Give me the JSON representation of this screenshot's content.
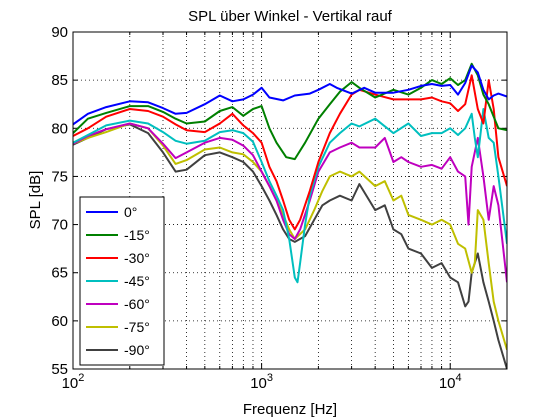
{
  "chart_data": {
    "type": "line",
    "title": "SPL über Winkel - Vertikal rauf",
    "xlabel": "Frequenz [Hz]",
    "ylabel": "SPL [dB]",
    "x_scale": "log",
    "xlim": [
      100,
      20000
    ],
    "ylim": [
      55,
      90
    ],
    "grid": true,
    "legend_position": "bottom-left",
    "x_ticks": [
      {
        "value": 100,
        "base": "10",
        "exp": "2"
      },
      {
        "value": 1000,
        "base": "10",
        "exp": "3"
      },
      {
        "value": 10000,
        "base": "10",
        "exp": "4"
      }
    ],
    "y_ticks": [
      "55",
      "60",
      "65",
      "70",
      "75",
      "80",
      "85",
      "90"
    ],
    "series": [
      {
        "name": "0°",
        "color": "#0000ff",
        "points": [
          [
            100,
            80.4
          ],
          [
            120,
            81.5
          ],
          [
            150,
            82.2
          ],
          [
            200,
            82.8
          ],
          [
            250,
            82.7
          ],
          [
            300,
            82.1
          ],
          [
            350,
            81.5
          ],
          [
            400,
            81.6
          ],
          [
            500,
            82.5
          ],
          [
            600,
            83.4
          ],
          [
            700,
            82.8
          ],
          [
            800,
            83.0
          ],
          [
            900,
            83.5
          ],
          [
            1000,
            84.2
          ],
          [
            1100,
            83.2
          ],
          [
            1300,
            82.9
          ],
          [
            1500,
            83.4
          ],
          [
            1800,
            83.6
          ],
          [
            2000,
            84.0
          ],
          [
            2300,
            84.6
          ],
          [
            2500,
            84.2
          ],
          [
            3000,
            83.6
          ],
          [
            3500,
            84.2
          ],
          [
            4000,
            83.7
          ],
          [
            5000,
            83.7
          ],
          [
            6000,
            84.0
          ],
          [
            7000,
            84.4
          ],
          [
            8000,
            84.6
          ],
          [
            9000,
            84.4
          ],
          [
            10000,
            84.5
          ],
          [
            11000,
            83.5
          ],
          [
            12000,
            84.7
          ],
          [
            13000,
            86.5
          ],
          [
            14000,
            85.8
          ],
          [
            15000,
            84.0
          ],
          [
            16000,
            83.0
          ],
          [
            17000,
            83.4
          ],
          [
            18000,
            83.6
          ],
          [
            20000,
            83.3
          ]
        ]
      },
      {
        "name": "-15°",
        "color": "#008000",
        "points": [
          [
            100,
            79.5
          ],
          [
            120,
            81.0
          ],
          [
            150,
            81.6
          ],
          [
            200,
            82.3
          ],
          [
            250,
            82.3
          ],
          [
            300,
            81.7
          ],
          [
            350,
            81.0
          ],
          [
            400,
            80.5
          ],
          [
            500,
            80.7
          ],
          [
            600,
            81.8
          ],
          [
            700,
            82.2
          ],
          [
            800,
            81.3
          ],
          [
            900,
            82.0
          ],
          [
            1000,
            82.3
          ],
          [
            1100,
            80.0
          ],
          [
            1200,
            78.5
          ],
          [
            1350,
            77.0
          ],
          [
            1500,
            76.8
          ],
          [
            1700,
            78.5
          ],
          [
            2000,
            81.0
          ],
          [
            2300,
            82.5
          ],
          [
            2600,
            83.8
          ],
          [
            3000,
            84.8
          ],
          [
            3300,
            84.2
          ],
          [
            4000,
            83.2
          ],
          [
            5000,
            84.0
          ],
          [
            6000,
            83.5
          ],
          [
            7000,
            84.2
          ],
          [
            8000,
            85.0
          ],
          [
            9000,
            84.6
          ],
          [
            10000,
            85.2
          ],
          [
            11000,
            84.5
          ],
          [
            12000,
            85.0
          ],
          [
            13000,
            86.7
          ],
          [
            14000,
            85.5
          ],
          [
            15000,
            83.5
          ],
          [
            16000,
            82.5
          ],
          [
            17000,
            81.2
          ],
          [
            18000,
            80.0
          ],
          [
            20000,
            79.8
          ]
        ]
      },
      {
        "name": "-30°",
        "color": "#ff0000",
        "points": [
          [
            100,
            79.2
          ],
          [
            120,
            80.0
          ],
          [
            150,
            81.2
          ],
          [
            200,
            82.0
          ],
          [
            250,
            81.8
          ],
          [
            300,
            81.2
          ],
          [
            350,
            80.4
          ],
          [
            400,
            79.8
          ],
          [
            500,
            79.6
          ],
          [
            600,
            80.5
          ],
          [
            700,
            81.5
          ],
          [
            800,
            80.3
          ],
          [
            900,
            79.5
          ],
          [
            1000,
            78.5
          ],
          [
            1100,
            76.0
          ],
          [
            1200,
            74.5
          ],
          [
            1300,
            72.5
          ],
          [
            1400,
            70.5
          ],
          [
            1500,
            69.5
          ],
          [
            1600,
            70.5
          ],
          [
            1800,
            73.5
          ],
          [
            2000,
            76.5
          ],
          [
            2300,
            79.5
          ],
          [
            2600,
            81.5
          ],
          [
            3000,
            83.5
          ],
          [
            3300,
            84.0
          ],
          [
            4000,
            83.5
          ],
          [
            5000,
            83.0
          ],
          [
            6000,
            83.0
          ],
          [
            7000,
            83.0
          ],
          [
            8000,
            83.2
          ],
          [
            9000,
            82.8
          ],
          [
            10000,
            82.6
          ],
          [
            11000,
            81.8
          ],
          [
            12000,
            82.5
          ],
          [
            13000,
            85.5
          ],
          [
            14000,
            82.0
          ],
          [
            15000,
            80.5
          ],
          [
            16000,
            85.0
          ],
          [
            17000,
            82.0
          ],
          [
            18000,
            77.0
          ],
          [
            20000,
            74.0
          ]
        ]
      },
      {
        "name": "-45°",
        "color": "#00bfbf",
        "points": [
          [
            100,
            78.5
          ],
          [
            120,
            79.3
          ],
          [
            150,
            80.3
          ],
          [
            200,
            80.8
          ],
          [
            250,
            80.5
          ],
          [
            300,
            79.6
          ],
          [
            350,
            78.7
          ],
          [
            400,
            78.4
          ],
          [
            500,
            78.7
          ],
          [
            600,
            79.6
          ],
          [
            700,
            79.8
          ],
          [
            800,
            79.5
          ],
          [
            900,
            78.6
          ],
          [
            1000,
            76.5
          ],
          [
            1100,
            74.5
          ],
          [
            1200,
            73.0
          ],
          [
            1300,
            71.5
          ],
          [
            1400,
            68.5
          ],
          [
            1500,
            64.5
          ],
          [
            1550,
            64.0
          ],
          [
            1600,
            66.0
          ],
          [
            1700,
            70.0
          ],
          [
            1800,
            73.0
          ],
          [
            2000,
            76.0
          ],
          [
            2300,
            78.5
          ],
          [
            2600,
            79.5
          ],
          [
            3000,
            80.5
          ],
          [
            3300,
            80.2
          ],
          [
            4000,
            81.0
          ],
          [
            5000,
            79.5
          ],
          [
            6000,
            80.5
          ],
          [
            7000,
            79.2
          ],
          [
            8000,
            79.5
          ],
          [
            9000,
            79.5
          ],
          [
            10000,
            80.0
          ],
          [
            11000,
            79.3
          ],
          [
            12000,
            80.0
          ],
          [
            13000,
            81.5
          ],
          [
            13500,
            79.0
          ],
          [
            14000,
            77.0
          ],
          [
            15000,
            82.0
          ],
          [
            16000,
            79.0
          ],
          [
            17000,
            78.5
          ],
          [
            18000,
            75.0
          ],
          [
            20000,
            68.0
          ]
        ]
      },
      {
        "name": "-60°",
        "color": "#bf00bf",
        "points": [
          [
            100,
            78.4
          ],
          [
            120,
            79.2
          ],
          [
            150,
            79.9
          ],
          [
            200,
            80.5
          ],
          [
            250,
            80.0
          ],
          [
            300,
            78.4
          ],
          [
            350,
            76.9
          ],
          [
            400,
            77.5
          ],
          [
            500,
            78.5
          ],
          [
            600,
            79.0
          ],
          [
            700,
            78.8
          ],
          [
            800,
            78.2
          ],
          [
            900,
            77.2
          ],
          [
            1000,
            75.5
          ],
          [
            1100,
            74.0
          ],
          [
            1200,
            72.5
          ],
          [
            1300,
            70.5
          ],
          [
            1400,
            69.0
          ],
          [
            1500,
            68.5
          ],
          [
            1600,
            69.5
          ],
          [
            1800,
            72.5
          ],
          [
            2000,
            75.5
          ],
          [
            2300,
            77.5
          ],
          [
            2600,
            78.0
          ],
          [
            3000,
            78.5
          ],
          [
            3300,
            78.0
          ],
          [
            4000,
            78.0
          ],
          [
            4500,
            79.0
          ],
          [
            5000,
            76.5
          ],
          [
            5500,
            77.0
          ],
          [
            6000,
            76.5
          ],
          [
            7000,
            76.0
          ],
          [
            8000,
            76.2
          ],
          [
            9000,
            75.8
          ],
          [
            10000,
            77.0
          ],
          [
            11000,
            75.5
          ],
          [
            12000,
            75.0
          ],
          [
            12500,
            70.0
          ],
          [
            13000,
            76.0
          ],
          [
            14000,
            79.0
          ],
          [
            15000,
            75.0
          ],
          [
            16000,
            70.5
          ],
          [
            17000,
            74.0
          ],
          [
            18000,
            72.0
          ],
          [
            20000,
            64.0
          ]
        ]
      },
      {
        "name": "-75°",
        "color": "#bfbf00",
        "points": [
          [
            100,
            78.4
          ],
          [
            120,
            79.0
          ],
          [
            150,
            79.6
          ],
          [
            200,
            80.5
          ],
          [
            250,
            80.0
          ],
          [
            300,
            78.2
          ],
          [
            350,
            76.3
          ],
          [
            400,
            76.7
          ],
          [
            500,
            77.8
          ],
          [
            600,
            78.0
          ],
          [
            700,
            77.5
          ],
          [
            800,
            77.3
          ],
          [
            900,
            76.5
          ],
          [
            1000,
            75.5
          ],
          [
            1100,
            74.0
          ],
          [
            1200,
            72.5
          ],
          [
            1300,
            71.0
          ],
          [
            1400,
            69.5
          ],
          [
            1500,
            68.5
          ],
          [
            1700,
            69.5
          ],
          [
            1900,
            71.5
          ],
          [
            2100,
            73.5
          ],
          [
            2300,
            75.0
          ],
          [
            2600,
            75.5
          ],
          [
            3000,
            75.0
          ],
          [
            3300,
            75.5
          ],
          [
            4000,
            74.0
          ],
          [
            4500,
            74.5
          ],
          [
            5000,
            72.5
          ],
          [
            5500,
            73.0
          ],
          [
            6000,
            71.0
          ],
          [
            7000,
            70.5
          ],
          [
            8000,
            70.0
          ],
          [
            9000,
            70.5
          ],
          [
            10000,
            70.0
          ],
          [
            11000,
            68.0
          ],
          [
            12000,
            67.5
          ],
          [
            13000,
            65.0
          ],
          [
            13500,
            66.0
          ],
          [
            14000,
            71.5
          ],
          [
            15000,
            70.5
          ],
          [
            16000,
            66.0
          ],
          [
            17000,
            62.0
          ],
          [
            18000,
            60.0
          ],
          [
            20000,
            57.0
          ]
        ]
      },
      {
        "name": "-90°",
        "color": "#404040",
        "points": [
          [
            100,
            78.3
          ],
          [
            120,
            79.0
          ],
          [
            150,
            79.9
          ],
          [
            200,
            80.4
          ],
          [
            250,
            79.5
          ],
          [
            300,
            77.5
          ],
          [
            350,
            75.5
          ],
          [
            400,
            75.7
          ],
          [
            500,
            77.2
          ],
          [
            600,
            77.5
          ],
          [
            700,
            77.0
          ],
          [
            800,
            76.5
          ],
          [
            900,
            75.5
          ],
          [
            1000,
            74.0
          ],
          [
            1100,
            72.5
          ],
          [
            1200,
            71.0
          ],
          [
            1300,
            69.5
          ],
          [
            1400,
            68.5
          ],
          [
            1500,
            68.2
          ],
          [
            1700,
            68.8
          ],
          [
            1900,
            70.5
          ],
          [
            2100,
            72.0
          ],
          [
            2300,
            72.5
          ],
          [
            2600,
            73.0
          ],
          [
            3000,
            72.5
          ],
          [
            3300,
            74.2
          ],
          [
            4000,
            71.5
          ],
          [
            4500,
            72.0
          ],
          [
            5000,
            69.5
          ],
          [
            5500,
            69.0
          ],
          [
            6000,
            67.5
          ],
          [
            7000,
            67.0
          ],
          [
            8000,
            65.5
          ],
          [
            9000,
            66.0
          ],
          [
            10000,
            64.5
          ],
          [
            11000,
            64.0
          ],
          [
            12000,
            61.5
          ],
          [
            12500,
            62.0
          ],
          [
            13000,
            65.0
          ],
          [
            14000,
            67.0
          ],
          [
            15000,
            64.0
          ],
          [
            16000,
            62.0
          ],
          [
            17000,
            60.0
          ],
          [
            18000,
            58.0
          ],
          [
            20000,
            55.0
          ]
        ]
      }
    ]
  }
}
